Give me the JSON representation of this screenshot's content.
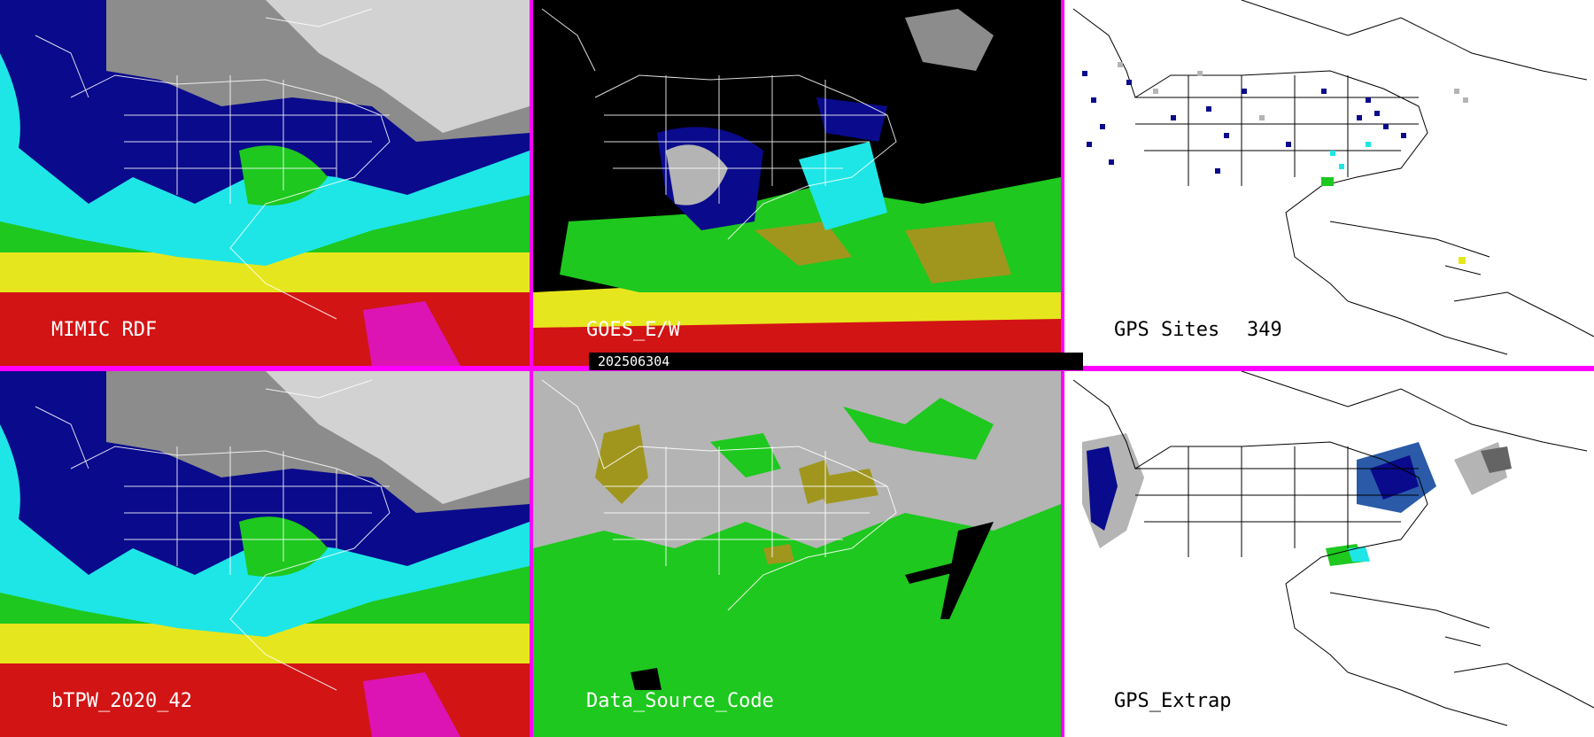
{
  "panels": {
    "mimic": {
      "label": "MIMIC RDF"
    },
    "goes": {
      "label": "GOES_E/W"
    },
    "gps_sites": {
      "label": "GPS Sites",
      "count": "349"
    },
    "btpw": {
      "label": "bTPW_2020_42"
    },
    "data_source": {
      "label": "Data_Source_Code"
    },
    "gps_extrap": {
      "label": "GPS_Extrap"
    }
  },
  "timestamp": "202506304",
  "colors": {
    "divider": "#ff00ff",
    "blue": "#0a0a8c",
    "cyan": "#1ee6e6",
    "green": "#1ec81e",
    "yellow": "#e6e61e",
    "red": "#d21414",
    "olive": "#a0961e",
    "gray": "#b4b4b4"
  }
}
